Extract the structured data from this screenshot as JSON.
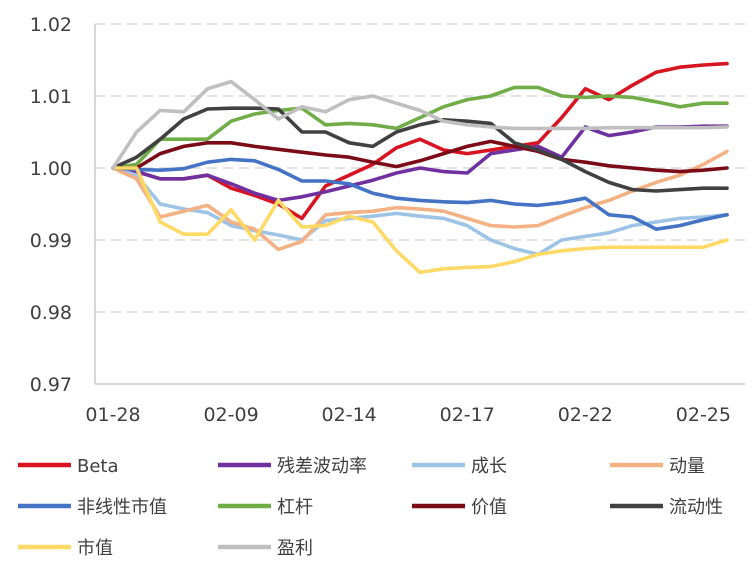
{
  "chart_data": {
    "type": "line",
    "title": "",
    "xlabel": "",
    "ylabel": "",
    "ylim": [
      0.97,
      1.02
    ],
    "yticks": [
      "0.97",
      "0.98",
      "0.99",
      "1.00",
      "1.01",
      "1.02"
    ],
    "ytick_values": [
      0.97,
      0.98,
      0.99,
      1.0,
      1.01,
      1.02
    ],
    "x_tick_labels": [
      "01-28",
      "02-09",
      "02-14",
      "02-17",
      "02-22",
      "02-25"
    ],
    "x_tick_index": [
      0,
      5,
      10,
      15,
      20,
      25
    ],
    "n_points": 27,
    "grid": "horizontal-dashed",
    "legend_position": "bottom",
    "series": [
      {
        "name": "Beta",
        "color": "#d7141f",
        "values": [
          1.0,
          0.9995,
          0.9985,
          0.9985,
          0.999,
          0.9972,
          0.9962,
          0.995,
          0.993,
          0.9975,
          0.999,
          1.0005,
          1.0028,
          1.004,
          1.0025,
          1.002,
          1.0025,
          1.003,
          1.0035,
          1.007,
          1.011,
          1.0095,
          1.0115,
          1.0133,
          1.014,
          1.0143,
          1.0145
        ]
      },
      {
        "name": "残差波动率",
        "color": "#7030a0",
        "values": [
          1.0,
          0.9995,
          0.9985,
          0.9985,
          0.999,
          0.9978,
          0.9965,
          0.9955,
          0.996,
          0.9967,
          0.9975,
          0.9983,
          0.9993,
          1.0,
          0.9995,
          0.9993,
          1.002,
          1.0025,
          1.003,
          1.0015,
          1.0057,
          1.0045,
          1.005,
          1.0057,
          1.0057,
          1.0058,
          1.0058
        ]
      },
      {
        "name": "成长",
        "color": "#9dc3e6",
        "values": [
          1.0,
          0.999,
          0.995,
          0.9943,
          0.9938,
          0.992,
          0.9913,
          0.9907,
          0.99,
          0.9927,
          0.993,
          0.9933,
          0.9937,
          0.9933,
          0.993,
          0.992,
          0.99,
          0.9888,
          0.988,
          0.99,
          0.9905,
          0.991,
          0.992,
          0.9925,
          0.993,
          0.9932,
          0.9935
        ]
      },
      {
        "name": "动量",
        "color": "#f4b183",
        "values": [
          1.0,
          0.9985,
          0.9932,
          0.994,
          0.9948,
          0.9925,
          0.9915,
          0.9887,
          0.9898,
          0.9935,
          0.9938,
          0.994,
          0.9945,
          0.9943,
          0.994,
          0.993,
          0.992,
          0.9918,
          0.992,
          0.9933,
          0.9945,
          0.9955,
          0.9968,
          0.998,
          0.999,
          1.0005,
          1.0023
        ]
      },
      {
        "name": "非线性市值",
        "color": "#4472c4",
        "values": [
          1.0,
          0.9998,
          0.9997,
          0.9999,
          1.0008,
          1.0012,
          1.001,
          0.9998,
          0.9982,
          0.9982,
          0.9978,
          0.9965,
          0.9958,
          0.9955,
          0.9953,
          0.9952,
          0.9955,
          0.995,
          0.9948,
          0.9952,
          0.9958,
          0.9935,
          0.9932,
          0.9915,
          0.992,
          0.9928,
          0.9935
        ]
      },
      {
        "name": "杠杆",
        "color": "#70ad47",
        "values": [
          1.0,
          1.0005,
          1.004,
          1.004,
          1.004,
          1.0065,
          1.0075,
          1.008,
          1.0083,
          1.006,
          1.0062,
          1.006,
          1.0055,
          1.007,
          1.0085,
          1.0095,
          1.01,
          1.0112,
          1.0112,
          1.01,
          1.0098,
          1.01,
          1.0098,
          1.0092,
          1.0085,
          1.009,
          1.009
        ]
      },
      {
        "name": "价值",
        "color": "#7b0c17",
        "values": [
          1.0,
          1.0,
          1.002,
          1.003,
          1.0035,
          1.0035,
          1.003,
          1.0026,
          1.0022,
          1.0018,
          1.0015,
          1.0008,
          1.0002,
          1.001,
          1.002,
          1.003,
          1.0037,
          1.003,
          1.0023,
          1.0012,
          1.0008,
          1.0003,
          1.0,
          0.9997,
          0.9995,
          0.9997,
          1.0
        ]
      },
      {
        "name": "流动性",
        "color": "#404040",
        "values": [
          1.0,
          1.0015,
          1.004,
          1.0068,
          1.0082,
          1.0083,
          1.0083,
          1.0082,
          1.005,
          1.005,
          1.0035,
          1.003,
          1.005,
          1.006,
          1.0067,
          1.0065,
          1.0062,
          1.0035,
          1.0025,
          1.0012,
          0.9995,
          0.998,
          0.997,
          0.9968,
          0.997,
          0.9972,
          0.9972
        ]
      },
      {
        "name": "市值",
        "color": "#ffd966",
        "values": [
          1.0,
          1.0,
          0.9925,
          0.9908,
          0.9908,
          0.9942,
          0.99,
          0.9955,
          0.9918,
          0.992,
          0.9933,
          0.9925,
          0.9885,
          0.9855,
          0.986,
          0.9862,
          0.9863,
          0.987,
          0.988,
          0.9885,
          0.9888,
          0.989,
          0.989,
          0.989,
          0.989,
          0.989,
          0.99
        ]
      },
      {
        "name": "盈利",
        "color": "#bfbfbf",
        "values": [
          1.0,
          1.005,
          1.008,
          1.0078,
          1.011,
          1.012,
          1.0095,
          1.0068,
          1.0085,
          1.0078,
          1.0095,
          1.01,
          1.009,
          1.008,
          1.0065,
          1.006,
          1.0057,
          1.0055,
          1.0055,
          1.0055,
          1.0055,
          1.0056,
          1.0056,
          1.0056,
          1.0056,
          1.0056,
          1.0057
        ]
      }
    ]
  }
}
